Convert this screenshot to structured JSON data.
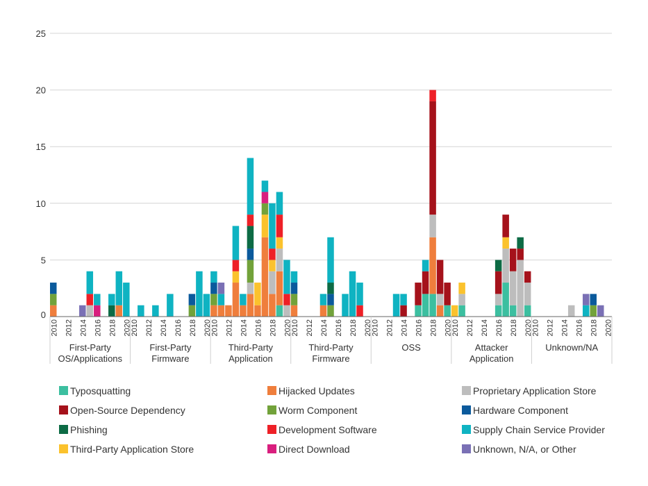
{
  "colors": {
    "Typosquatting": "#3cbfa0",
    "Hijacked Updates": "#ef7e3c",
    "Proprietary Application Store": "#bdbdbd",
    "Open-Source Dependency": "#a5121b",
    "Worm Component": "#72a23a",
    "Hardware Component": "#0b5a9c",
    "Phishing": "#0d6b45",
    "Development Software": "#ee2027",
    "Supply Chain Service Provider": "#0fb3c2",
    "Third-Party Application Store": "#fbc22d",
    "Direct Download": "#d91f7e",
    "Unknown, N/A, or Other": "#7a70b5",
    "grid": "#d4d4d4",
    "axis": "#666666"
  },
  "legend": [
    "Typosquatting",
    "Hijacked Updates",
    "Proprietary Application Store",
    "Open-Source Dependency",
    "Worm Component",
    "Hardware Component",
    "Phishing",
    "Development Software",
    "Supply Chain Service Provider",
    "Third-Party Application Store",
    "Direct Download",
    "Unknown, N/A, or Other"
  ],
  "chart_data": {
    "type": "bar",
    "stacked": true,
    "ylim": [
      0,
      25
    ],
    "yticks": [
      0,
      5,
      10,
      15,
      20,
      25
    ],
    "grid": true,
    "xlabel": "",
    "ylabel": "",
    "title": "",
    "legend_position": "bottom",
    "year_tick_labels": [
      "2010",
      "2012",
      "2014",
      "2016",
      "2018",
      "2020"
    ],
    "groups": [
      {
        "label": [
          "First-Party",
          "OS/Applications"
        ],
        "bars": [
          {
            "year": 2010,
            "stack": [
              [
                "Hijacked Updates",
                1
              ],
              [
                "Worm Component",
                1
              ],
              [
                "Hardware Component",
                1
              ]
            ]
          },
          {
            "year": 2014,
            "stack": [
              [
                "Unknown, N/A, or Other",
                1
              ]
            ]
          },
          {
            "year": 2015,
            "stack": [
              [
                "Proprietary Application Store",
                1
              ],
              [
                "Development Software",
                1
              ],
              [
                "Supply Chain Service Provider",
                2
              ]
            ]
          },
          {
            "year": 2016,
            "stack": [
              [
                "Direct Download",
                1
              ],
              [
                "Supply Chain Service Provider",
                1
              ]
            ]
          },
          {
            "year": 2018,
            "stack": [
              [
                "Phishing",
                1
              ],
              [
                "Supply Chain Service Provider",
                1
              ]
            ]
          },
          {
            "year": 2019,
            "stack": [
              [
                "Hijacked Updates",
                1
              ],
              [
                "Supply Chain Service Provider",
                3
              ]
            ]
          },
          {
            "year": 2020,
            "stack": [
              [
                "Supply Chain Service Provider",
                3
              ]
            ]
          }
        ]
      },
      {
        "label": [
          "First-Party",
          "Firmware"
        ],
        "bars": [
          {
            "year": 2011,
            "stack": [
              [
                "Supply Chain Service Provider",
                1
              ]
            ]
          },
          {
            "year": 2013,
            "stack": [
              [
                "Supply Chain Service Provider",
                1
              ]
            ]
          },
          {
            "year": 2015,
            "stack": [
              [
                "Supply Chain Service Provider",
                2
              ]
            ]
          },
          {
            "year": 2018,
            "stack": [
              [
                "Worm Component",
                1
              ],
              [
                "Hardware Component",
                1
              ]
            ]
          },
          {
            "year": 2019,
            "stack": [
              [
                "Supply Chain Service Provider",
                4
              ]
            ]
          },
          {
            "year": 2020,
            "stack": [
              [
                "Supply Chain Service Provider",
                2
              ]
            ]
          }
        ]
      },
      {
        "label": [
          "Third-Party",
          "Application"
        ],
        "bars": [
          {
            "year": 2010,
            "stack": [
              [
                "Hijacked Updates",
                1
              ],
              [
                "Worm Component",
                1
              ],
              [
                "Hardware Component",
                1
              ],
              [
                "Supply Chain Service Provider",
                1
              ]
            ]
          },
          {
            "year": 2011,
            "stack": [
              [
                "Hijacked Updates",
                1
              ],
              [
                "Supply Chain Service Provider",
                1
              ],
              [
                "Unknown, N/A, or Other",
                1
              ]
            ]
          },
          {
            "year": 2012,
            "stack": [
              [
                "Hijacked Updates",
                1
              ]
            ]
          },
          {
            "year": 2013,
            "stack": [
              [
                "Hijacked Updates",
                3
              ],
              [
                "Third-Party Application Store",
                1
              ],
              [
                "Development Software",
                1
              ],
              [
                "Supply Chain Service Provider",
                3
              ]
            ]
          },
          {
            "year": 2014,
            "stack": [
              [
                "Hijacked Updates",
                1
              ],
              [
                "Supply Chain Service Provider",
                1
              ]
            ]
          },
          {
            "year": 2015,
            "stack": [
              [
                "Hijacked Updates",
                2
              ],
              [
                "Proprietary Application Store",
                1
              ],
              [
                "Worm Component",
                2
              ],
              [
                "Hardware Component",
                1
              ],
              [
                "Phishing",
                2
              ],
              [
                "Development Software",
                1
              ],
              [
                "Supply Chain Service Provider",
                5
              ]
            ]
          },
          {
            "year": 2016,
            "stack": [
              [
                "Hijacked Updates",
                1
              ],
              [
                "Third-Party Application Store",
                2
              ]
            ]
          },
          {
            "year": 2017,
            "stack": [
              [
                "Hijacked Updates",
                7
              ],
              [
                "Third-Party Application Store",
                2
              ],
              [
                "Worm Component",
                1
              ],
              [
                "Direct Download",
                1
              ],
              [
                "Supply Chain Service Provider",
                1
              ]
            ]
          },
          {
            "year": 2018,
            "stack": [
              [
                "Hijacked Updates",
                2
              ],
              [
                "Proprietary Application Store",
                2
              ],
              [
                "Third-Party Application Store",
                1
              ],
              [
                "Development Software",
                1
              ],
              [
                "Supply Chain Service Provider",
                4
              ]
            ]
          },
          {
            "year": 2019,
            "stack": [
              [
                "Typosquatting",
                1
              ],
              [
                "Hijacked Updates",
                3
              ],
              [
                "Proprietary Application Store",
                2
              ],
              [
                "Third-Party Application Store",
                1
              ],
              [
                "Development Software",
                2
              ],
              [
                "Supply Chain Service Provider",
                2
              ]
            ]
          },
          {
            "year": 2020,
            "stack": [
              [
                "Proprietary Application Store",
                1
              ],
              [
                "Development Software",
                1
              ],
              [
                "Supply Chain Service Provider",
                3
              ]
            ]
          }
        ]
      },
      {
        "label": [
          "Third-Party",
          "Firmware"
        ],
        "bars": [
          {
            "year": 2010,
            "stack": [
              [
                "Hijacked Updates",
                1
              ],
              [
                "Worm Component",
                1
              ],
              [
                "Hardware Component",
                1
              ],
              [
                "Supply Chain Service Provider",
                1
              ]
            ]
          },
          {
            "year": 2014,
            "stack": [
              [
                "Hijacked Updates",
                1
              ],
              [
                "Supply Chain Service Provider",
                1
              ]
            ]
          },
          {
            "year": 2015,
            "stack": [
              [
                "Worm Component",
                1
              ],
              [
                "Hardware Component",
                1
              ],
              [
                "Phishing",
                1
              ],
              [
                "Supply Chain Service Provider",
                4
              ]
            ]
          },
          {
            "year": 2017,
            "stack": [
              [
                "Supply Chain Service Provider",
                2
              ]
            ]
          },
          {
            "year": 2018,
            "stack": [
              [
                "Supply Chain Service Provider",
                4
              ]
            ]
          },
          {
            "year": 2019,
            "stack": [
              [
                "Development Software",
                1
              ],
              [
                "Supply Chain Service Provider",
                2
              ]
            ]
          }
        ]
      },
      {
        "label": [
          "OSS"
        ],
        "bars": [
          {
            "year": 2013,
            "stack": [
              [
                "Supply Chain Service Provider",
                2
              ]
            ]
          },
          {
            "year": 2014,
            "stack": [
              [
                "Open-Source Dependency",
                1
              ],
              [
                "Supply Chain Service Provider",
                1
              ]
            ]
          },
          {
            "year": 2016,
            "stack": [
              [
                "Typosquatting",
                1
              ],
              [
                "Open-Source Dependency",
                2
              ]
            ]
          },
          {
            "year": 2017,
            "stack": [
              [
                "Typosquatting",
                2
              ],
              [
                "Open-Source Dependency",
                2
              ],
              [
                "Supply Chain Service Provider",
                1
              ]
            ]
          },
          {
            "year": 2018,
            "stack": [
              [
                "Typosquatting",
                2
              ],
              [
                "Hijacked Updates",
                5
              ],
              [
                "Proprietary Application Store",
                2
              ],
              [
                "Open-Source Dependency",
                10
              ],
              [
                "Development Software",
                1
              ]
            ]
          },
          {
            "year": 2019,
            "stack": [
              [
                "Hijacked Updates",
                1
              ],
              [
                "Proprietary Application Store",
                1
              ],
              [
                "Open-Source Dependency",
                3
              ]
            ]
          },
          {
            "year": 2020,
            "stack": [
              [
                "Typosquatting",
                1
              ],
              [
                "Open-Source Dependency",
                2
              ]
            ]
          }
        ]
      },
      {
        "label": [
          "Attacker",
          "Application"
        ],
        "bars": [
          {
            "year": 2010,
            "stack": [
              [
                "Third-Party Application Store",
                1
              ]
            ]
          },
          {
            "year": 2011,
            "stack": [
              [
                "Typosquatting",
                1
              ],
              [
                "Proprietary Application Store",
                1
              ],
              [
                "Third-Party Application Store",
                1
              ]
            ]
          },
          {
            "year": 2016,
            "stack": [
              [
                "Typosquatting",
                1
              ],
              [
                "Proprietary Application Store",
                1
              ],
              [
                "Open-Source Dependency",
                2
              ],
              [
                "Phishing",
                1
              ]
            ]
          },
          {
            "year": 2017,
            "stack": [
              [
                "Typosquatting",
                3
              ],
              [
                "Proprietary Application Store",
                3
              ],
              [
                "Third-Party Application Store",
                1
              ],
              [
                "Open-Source Dependency",
                2
              ]
            ]
          },
          {
            "year": 2018,
            "stack": [
              [
                "Typosquatting",
                1
              ],
              [
                "Proprietary Application Store",
                3
              ],
              [
                "Open-Source Dependency",
                2
              ]
            ]
          },
          {
            "year": 2019,
            "stack": [
              [
                "Proprietary Application Store",
                5
              ],
              [
                "Open-Source Dependency",
                1
              ],
              [
                "Phishing",
                1
              ]
            ]
          },
          {
            "year": 2020,
            "stack": [
              [
                "Typosquatting",
                1
              ],
              [
                "Proprietary Application Store",
                2
              ],
              [
                "Open-Source Dependency",
                1
              ]
            ]
          }
        ]
      },
      {
        "label": [
          "Unknown/NA"
        ],
        "bars": [
          {
            "year": 2015,
            "stack": [
              [
                "Proprietary Application Store",
                1
              ]
            ]
          },
          {
            "year": 2017,
            "stack": [
              [
                "Supply Chain Service Provider",
                1
              ],
              [
                "Unknown, N/A, or Other",
                1
              ]
            ]
          },
          {
            "year": 2018,
            "stack": [
              [
                "Worm Component",
                1
              ],
              [
                "Hardware Component",
                1
              ]
            ]
          },
          {
            "year": 2019,
            "stack": [
              [
                "Unknown, N/A, or Other",
                1
              ]
            ]
          }
        ]
      }
    ]
  }
}
